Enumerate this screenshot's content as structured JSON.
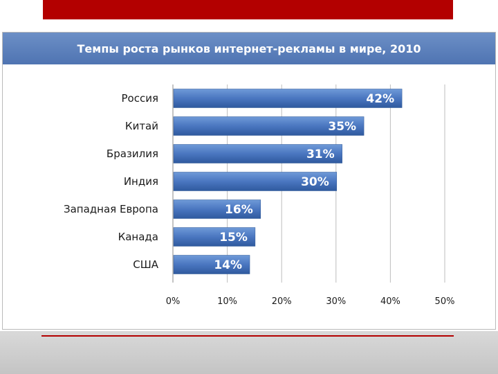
{
  "chart_data": {
    "type": "bar",
    "orientation": "horizontal",
    "title": "Темпы роста рынков интернет-рекламы в мире, 2010",
    "categories": [
      "Россия",
      "Китай",
      "Бразилия",
      "Индия",
      "Западная Европа",
      "Канада",
      "США"
    ],
    "values": [
      42,
      35,
      31,
      30,
      16,
      15,
      14
    ],
    "data_labels": [
      "42%",
      "35%",
      "31%",
      "30%",
      "16%",
      "15%",
      "14%"
    ],
    "xlim": [
      0,
      50
    ],
    "x_ticks": [
      0,
      10,
      20,
      30,
      40,
      50
    ],
    "x_tick_labels": [
      "0%",
      "10%",
      "20%",
      "30%",
      "40%",
      "50%"
    ],
    "grid": true,
    "legend": "none",
    "bar_color": "#4a76c0"
  }
}
